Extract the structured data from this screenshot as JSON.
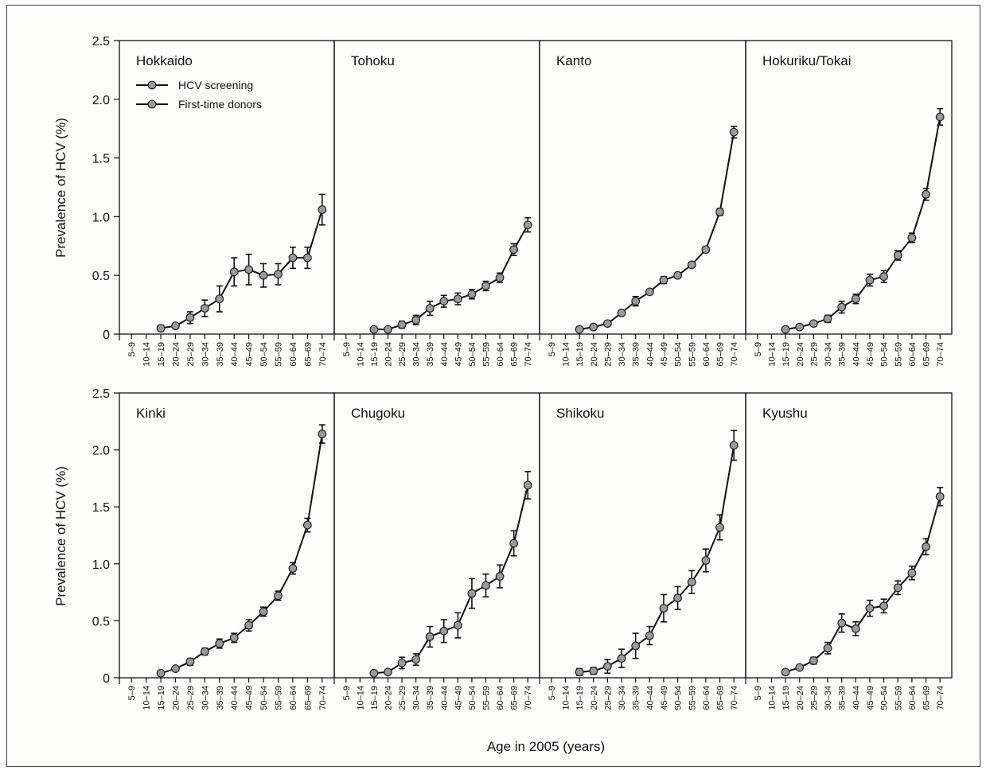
{
  "chart_data": {
    "type": "line",
    "xlabel": "Age in 2005 (years)",
    "ylabel": "Prevalence of HCV (%)",
    "ylim": [
      0,
      2.5
    ],
    "yticks": [
      "0",
      "0.5",
      "1.0",
      "1.5",
      "2.0",
      "2.5"
    ],
    "categories": [
      "5–9",
      "10–14",
      "15–19",
      "20–24",
      "25–29",
      "30–34",
      "35–39",
      "40–44",
      "45–49",
      "50–54",
      "55–59",
      "60–64",
      "65–69",
      "70–74"
    ],
    "legend": {
      "placement": "top-left of first panel",
      "entries": [
        "HCV screening",
        "First-time donors"
      ]
    },
    "grid": false,
    "panels": [
      {
        "name": "Hokkaido",
        "values": [
          null,
          null,
          0.05,
          0.07,
          0.14,
          0.22,
          0.3,
          0.53,
          0.55,
          0.5,
          0.51,
          0.65,
          0.65,
          1.06
        ],
        "errors": [
          null,
          null,
          0.02,
          0.02,
          0.05,
          0.07,
          0.11,
          0.12,
          0.13,
          0.1,
          0.09,
          0.09,
          0.09,
          0.13
        ]
      },
      {
        "name": "Tohoku",
        "values": [
          null,
          null,
          0.04,
          0.04,
          0.08,
          0.12,
          0.22,
          0.28,
          0.3,
          0.34,
          0.41,
          0.48,
          0.72,
          0.93
        ],
        "errors": [
          null,
          null,
          0.01,
          0.01,
          0.03,
          0.04,
          0.06,
          0.05,
          0.05,
          0.04,
          0.04,
          0.04,
          0.05,
          0.06
        ]
      },
      {
        "name": "Kanto",
        "values": [
          null,
          null,
          0.04,
          0.06,
          0.09,
          0.18,
          0.28,
          0.36,
          0.46,
          0.5,
          0.59,
          0.72,
          1.04,
          1.72
        ],
        "errors": [
          null,
          null,
          0.01,
          0.01,
          0.02,
          0.02,
          0.04,
          0.02,
          0.03,
          0.02,
          0.02,
          0.02,
          0.03,
          0.05
        ]
      },
      {
        "name": "Hokuriku/Tokai",
        "values": [
          null,
          null,
          0.04,
          0.06,
          0.09,
          0.13,
          0.23,
          0.3,
          0.46,
          0.49,
          0.67,
          0.82,
          1.19,
          1.85
        ],
        "errors": [
          null,
          null,
          0.01,
          0.01,
          0.02,
          0.03,
          0.05,
          0.04,
          0.05,
          0.05,
          0.04,
          0.04,
          0.05,
          0.07
        ]
      },
      {
        "name": "Kinki",
        "values": [
          null,
          null,
          0.04,
          0.08,
          0.14,
          0.23,
          0.3,
          0.35,
          0.46,
          0.58,
          0.72,
          0.96,
          1.34,
          2.14
        ],
        "errors": [
          null,
          null,
          0.01,
          0.01,
          0.03,
          0.03,
          0.04,
          0.04,
          0.05,
          0.04,
          0.04,
          0.05,
          0.06,
          0.08
        ]
      },
      {
        "name": "Chugoku",
        "values": [
          null,
          null,
          0.04,
          0.05,
          0.13,
          0.16,
          0.36,
          0.41,
          0.46,
          0.74,
          0.81,
          0.89,
          1.18,
          1.69
        ],
        "errors": [
          null,
          null,
          0.02,
          0.02,
          0.05,
          0.05,
          0.09,
          0.1,
          0.11,
          0.13,
          0.1,
          0.1,
          0.11,
          0.12
        ]
      },
      {
        "name": "Shikoku",
        "values": [
          null,
          null,
          0.05,
          0.06,
          0.1,
          0.17,
          0.28,
          0.37,
          0.61,
          0.7,
          0.84,
          1.03,
          1.32,
          2.04
        ],
        "errors": [
          null,
          null,
          0.03,
          0.03,
          0.06,
          0.08,
          0.11,
          0.08,
          0.12,
          0.1,
          0.1,
          0.1,
          0.11,
          0.13
        ]
      },
      {
        "name": "Kyushu",
        "values": [
          null,
          null,
          0.05,
          0.09,
          0.15,
          0.26,
          0.48,
          0.43,
          0.61,
          0.63,
          0.79,
          0.92,
          1.15,
          1.59
        ],
        "errors": [
          null,
          null,
          0.01,
          0.02,
          0.03,
          0.05,
          0.08,
          0.06,
          0.07,
          0.06,
          0.06,
          0.06,
          0.07,
          0.08
        ]
      }
    ]
  }
}
